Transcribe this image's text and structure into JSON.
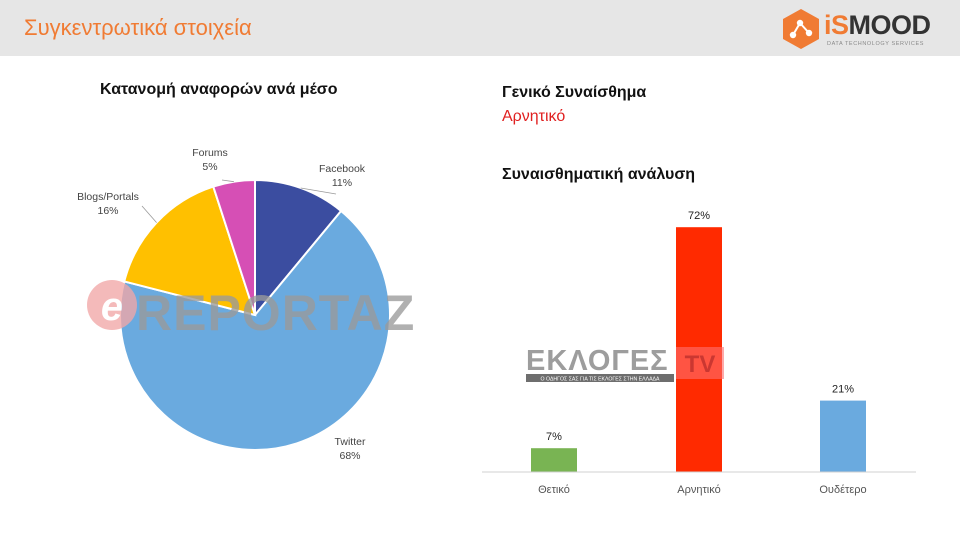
{
  "header": {
    "title": "Συγκεντρωτικά στοιχεία"
  },
  "logo": {
    "brand_prefix": "iS",
    "brand_suffix": "MOOD",
    "tagline": "DATA TECHNOLOGY SERVICES",
    "icon": "network-hexagon-icon",
    "accent_color": "#f07b33"
  },
  "general_sentiment": {
    "heading": "Γενικό Συναίσθημα",
    "value": "Αρνητικό",
    "value_color": "#e02020"
  },
  "watermarks": {
    "ereportaz": {
      "mark": "e",
      "text": "REPORTAZ"
    },
    "ekloges": {
      "text": "ΕΚΛΟΓΕΣ",
      "badge": "TV",
      "tagline": "Ο ΟΔΗΓΟΣ ΣΑΣ ΓΙΑ ΤΙΣ ΕΚΛΟΓΕΣ ΣΤΗΝ ΕΛΛΑΔΑ"
    }
  },
  "chart_data": [
    {
      "type": "pie",
      "title": "Κατανομή αναφορών ανά μέσο",
      "slices": [
        {
          "label": "Facebook",
          "value": 11,
          "display": "11%",
          "color": "#3b4da0"
        },
        {
          "label": "Twitter",
          "value": 68,
          "display": "68%",
          "color": "#6aaadf"
        },
        {
          "label": "Blogs/Portals",
          "value": 16,
          "display": "16%",
          "color": "#ffc000"
        },
        {
          "label": "Forums",
          "value": 5,
          "display": "5%",
          "color": "#d64fb5"
        }
      ]
    },
    {
      "type": "bar",
      "title": "Συναισθηματική ανάλυση",
      "categories": [
        "Θετικό",
        "Αρνητικό",
        "Ουδέτερο"
      ],
      "values": [
        7,
        72,
        21
      ],
      "labels": [
        "7%",
        "72%",
        "21%"
      ],
      "colors": [
        "#79b453",
        "#ff2a00",
        "#6aaadf"
      ],
      "ylim": [
        0,
        80
      ],
      "grid": false
    }
  ]
}
